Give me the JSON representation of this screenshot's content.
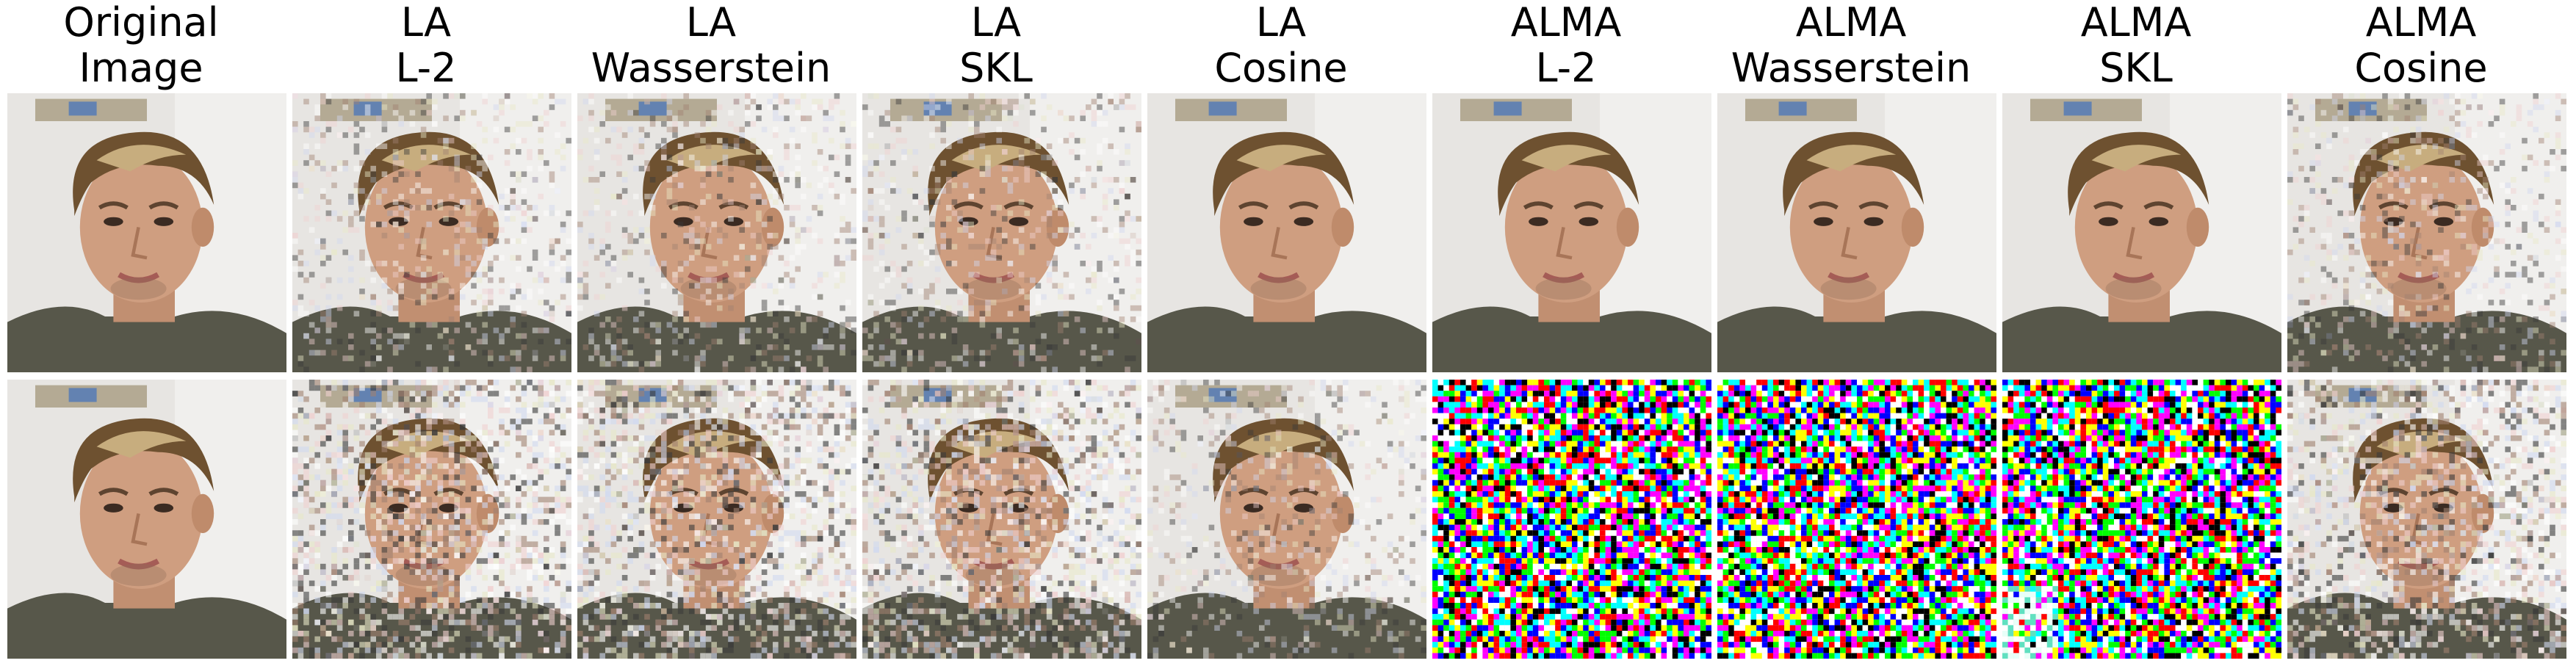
{
  "columns": [
    {
      "line1": "Original",
      "line2": "Image"
    },
    {
      "line1": "LA",
      "line2": "L-2"
    },
    {
      "line1": "LA",
      "line2": "Wasserstein"
    },
    {
      "line1": "LA",
      "line2": "SKL"
    },
    {
      "line1": "LA",
      "line2": "Cosine"
    },
    {
      "line1": "ALMA",
      "line2": "L-2"
    },
    {
      "line1": "ALMA",
      "line2": "Wasserstein"
    },
    {
      "line1": "ALMA",
      "line2": "SKL"
    },
    {
      "line1": "ALMA",
      "line2": "Cosine"
    }
  ],
  "rows": [
    [
      "face-clean",
      "face-light-noise",
      "face-light-noise",
      "face-light-noise",
      "face-clean",
      "face-clean",
      "face-clean",
      "face-clean",
      "face-light-noise"
    ],
    [
      "face-clean",
      "face-heavy-noise",
      "face-heavy-noise",
      "face-heavy-noise",
      "face-light-noise",
      "random-noise",
      "random-noise",
      "random-noise-partial",
      "face-heavy-noise"
    ]
  ]
}
